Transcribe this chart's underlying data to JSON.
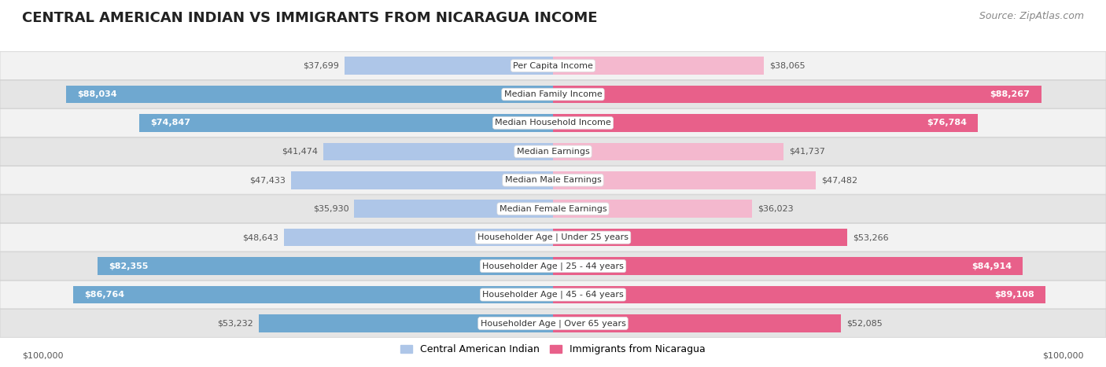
{
  "title": "CENTRAL AMERICAN INDIAN VS IMMIGRANTS FROM NICARAGUA INCOME",
  "source": "Source: ZipAtlas.com",
  "categories": [
    "Per Capita Income",
    "Median Family Income",
    "Median Household Income",
    "Median Earnings",
    "Median Male Earnings",
    "Median Female Earnings",
    "Householder Age | Under 25 years",
    "Householder Age | 25 - 44 years",
    "Householder Age | 45 - 64 years",
    "Householder Age | Over 65 years"
  ],
  "left_values": [
    37699,
    88034,
    74847,
    41474,
    47433,
    35930,
    48643,
    82355,
    86764,
    53232
  ],
  "right_values": [
    38065,
    88267,
    76784,
    41737,
    47482,
    36023,
    53266,
    84914,
    89108,
    52085
  ],
  "left_labels": [
    "$37,699",
    "$88,034",
    "$74,847",
    "$41,474",
    "$47,433",
    "$35,930",
    "$48,643",
    "$82,355",
    "$86,764",
    "$53,232"
  ],
  "right_labels": [
    "$38,065",
    "$88,267",
    "$76,784",
    "$41,737",
    "$47,482",
    "$36,023",
    "$53,266",
    "$84,914",
    "$89,108",
    "$52,085"
  ],
  "left_label_inside": [
    false,
    true,
    true,
    false,
    false,
    false,
    false,
    true,
    true,
    false
  ],
  "right_label_inside": [
    false,
    true,
    true,
    false,
    false,
    false,
    false,
    true,
    true,
    false
  ],
  "max_value": 100000,
  "left_color_light": "#aec6e8",
  "left_color_dark": "#6fa8d0",
  "right_color_light": "#f4b8ce",
  "right_color_dark": "#e8608a",
  "left_legend": "Central American Indian",
  "right_legend": "Immigrants from Nicaragua",
  "row_bg_light": "#f2f2f2",
  "row_bg_dark": "#e5e5e5",
  "xlabel_left": "$100,000",
  "xlabel_right": "$100,000",
  "title_fontsize": 13,
  "source_fontsize": 9,
  "label_fontsize": 8,
  "category_fontsize": 8,
  "legend_fontsize": 9
}
